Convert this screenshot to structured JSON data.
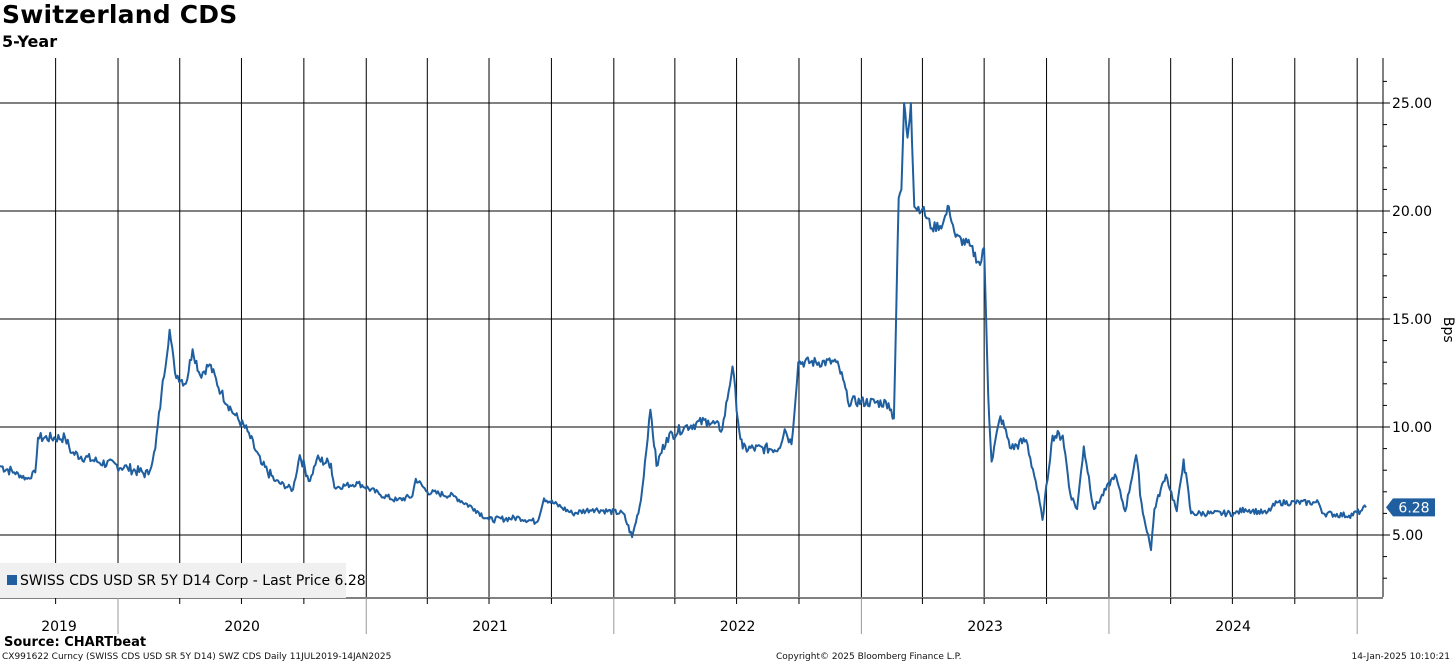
{
  "header": {
    "title": "Switzerland CDS",
    "subtitle": "5-Year"
  },
  "footer": {
    "source": "Source: CHARTbeat",
    "left": "CX991622 Curncy (SWISS CDS USD SR 5Y D14) SWZ CDS  Daily 11JUL2019-14JAN2025",
    "center": "Copyright© 2025 Bloomberg Finance L.P.",
    "right": "14-Jan-2025 10:10:21"
  },
  "colors": {
    "series": "#1f5fa0",
    "grid": "#000000",
    "background": "#ffffff",
    "legend_bg": "#f0f0f0"
  },
  "chart_data": {
    "type": "line",
    "title": "Switzerland CDS",
    "subtitle": "5-Year",
    "ylabel": "Bps",
    "ylim": [
      2.0,
      27.0
    ],
    "xlim": [
      "2019-07-11",
      "2025-01-14"
    ],
    "y_ticks": [
      "25.00",
      "20.00",
      "15.00",
      "10.00",
      "5.00"
    ],
    "y_tick_values": [
      25,
      20,
      15,
      10,
      5
    ],
    "year_labels": [
      "2019",
      "2020",
      "2021",
      "2022",
      "2023",
      "2024"
    ],
    "grid": true,
    "legend_position": "bottom-left",
    "last_value_label": "6.28",
    "series": [
      {
        "name": "SWISS CDS USD SR 5Y D14 Corp - Last Price 6.28",
        "points": [
          [
            "2019-07-11",
            8.2
          ],
          [
            "2019-08-01",
            7.9
          ],
          [
            "2019-08-20",
            7.6
          ],
          [
            "2019-09-01",
            7.9
          ],
          [
            "2019-09-05",
            9.5
          ],
          [
            "2019-10-15",
            9.5
          ],
          [
            "2019-10-25",
            8.8
          ],
          [
            "2019-12-01",
            8.4
          ],
          [
            "2020-01-15",
            8.1
          ],
          [
            "2020-02-15",
            7.8
          ],
          [
            "2020-02-25",
            9.0
          ],
          [
            "2020-03-05",
            11.5
          ],
          [
            "2020-03-17",
            14.5
          ],
          [
            "2020-03-25",
            12.5
          ],
          [
            "2020-04-10",
            12.0
          ],
          [
            "2020-04-20",
            13.6
          ],
          [
            "2020-05-01",
            12.4
          ],
          [
            "2020-05-15",
            12.9
          ],
          [
            "2020-06-01",
            11.6
          ],
          [
            "2020-06-20",
            10.6
          ],
          [
            "2020-07-10",
            9.8
          ],
          [
            "2020-07-30",
            8.3
          ],
          [
            "2020-08-20",
            7.5
          ],
          [
            "2020-09-15",
            7.1
          ],
          [
            "2020-09-25",
            8.7
          ],
          [
            "2020-10-10",
            7.5
          ],
          [
            "2020-10-20",
            8.5
          ],
          [
            "2020-11-10",
            8.3
          ],
          [
            "2020-11-15",
            7.2
          ],
          [
            "2020-12-20",
            7.4
          ],
          [
            "2021-01-20",
            6.9
          ],
          [
            "2021-02-15",
            6.6
          ],
          [
            "2021-03-10",
            6.8
          ],
          [
            "2021-03-15",
            7.6
          ],
          [
            "2021-04-01",
            7.0
          ],
          [
            "2021-05-10",
            6.8
          ],
          [
            "2021-06-10",
            6.2
          ],
          [
            "2021-07-01",
            5.7
          ],
          [
            "2021-08-15",
            5.8
          ],
          [
            "2021-09-10",
            5.6
          ],
          [
            "2021-09-20",
            6.7
          ],
          [
            "2021-10-15",
            6.3
          ],
          [
            "2021-11-01",
            6.0
          ],
          [
            "2021-12-01",
            6.2
          ],
          [
            "2022-01-15",
            6.0
          ],
          [
            "2022-01-28",
            4.9
          ],
          [
            "2022-02-10",
            6.6
          ],
          [
            "2022-02-24",
            10.8
          ],
          [
            "2022-03-05",
            8.2
          ],
          [
            "2022-03-20",
            9.5
          ],
          [
            "2022-04-15",
            10.0
          ],
          [
            "2022-05-20",
            10.3
          ],
          [
            "2022-06-10",
            9.9
          ],
          [
            "2022-06-25",
            12.8
          ],
          [
            "2022-07-05",
            9.8
          ],
          [
            "2022-07-10",
            9.0
          ],
          [
            "2022-09-01",
            9.0
          ],
          [
            "2022-09-10",
            9.9
          ],
          [
            "2022-09-20",
            9.2
          ],
          [
            "2022-09-30",
            13.0
          ],
          [
            "2022-11-25",
            13.0
          ],
          [
            "2022-12-05",
            12.2
          ],
          [
            "2022-12-12",
            11.2
          ],
          [
            "2023-02-10",
            11.1
          ],
          [
            "2023-02-18",
            10.4
          ],
          [
            "2023-02-25",
            20.6
          ],
          [
            "2023-03-01",
            21.0
          ],
          [
            "2023-03-05",
            25.0
          ],
          [
            "2023-03-10",
            23.4
          ],
          [
            "2023-03-15",
            25.0
          ],
          [
            "2023-03-20",
            20.2
          ],
          [
            "2023-04-01",
            20.1
          ],
          [
            "2023-04-15",
            19.2
          ],
          [
            "2023-05-01",
            19.4
          ],
          [
            "2023-05-10",
            20.2
          ],
          [
            "2023-05-20",
            18.8
          ],
          [
            "2023-06-10",
            18.4
          ],
          [
            "2023-06-25",
            17.5
          ],
          [
            "2023-07-01",
            18.3
          ],
          [
            "2023-07-07",
            11.5
          ],
          [
            "2023-07-12",
            8.4
          ],
          [
            "2023-07-25",
            10.5
          ],
          [
            "2023-08-10",
            9.0
          ],
          [
            "2023-09-01",
            9.4
          ],
          [
            "2023-09-15",
            7.5
          ],
          [
            "2023-09-25",
            5.7
          ],
          [
            "2023-10-10",
            9.6
          ],
          [
            "2023-10-25",
            9.6
          ],
          [
            "2023-11-05",
            6.9
          ],
          [
            "2023-11-15",
            6.2
          ],
          [
            "2023-11-25",
            9.1
          ],
          [
            "2023-12-10",
            6.2
          ],
          [
            "2024-01-10",
            7.8
          ],
          [
            "2024-01-25",
            6.1
          ],
          [
            "2024-02-10",
            8.7
          ],
          [
            "2024-02-20",
            6.0
          ],
          [
            "2024-02-28",
            5.0
          ],
          [
            "2024-03-03",
            4.3
          ],
          [
            "2024-03-08",
            6.2
          ],
          [
            "2024-03-25",
            7.8
          ],
          [
            "2024-04-10",
            6.1
          ],
          [
            "2024-04-20",
            8.5
          ],
          [
            "2024-05-01",
            6.0
          ],
          [
            "2024-06-01",
            6.0
          ],
          [
            "2024-07-05",
            6.0
          ],
          [
            "2024-07-20",
            6.2
          ],
          [
            "2024-08-20",
            6.0
          ],
          [
            "2024-09-05",
            6.5
          ],
          [
            "2024-11-05",
            6.5
          ],
          [
            "2024-11-12",
            6.0
          ],
          [
            "2024-12-20",
            5.9
          ],
          [
            "2025-01-06",
            6.1
          ],
          [
            "2025-01-14",
            6.28
          ]
        ]
      }
    ]
  }
}
